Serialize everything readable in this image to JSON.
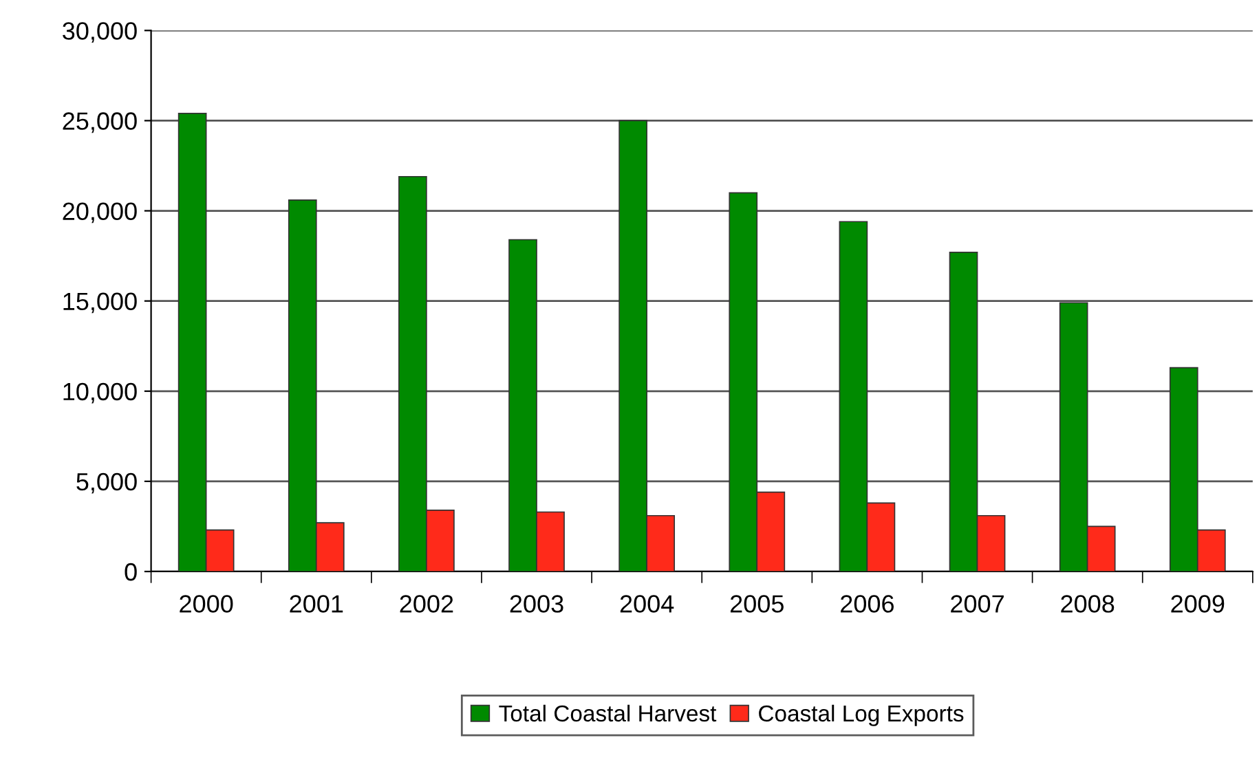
{
  "chart_data": {
    "type": "bar",
    "categories": [
      "2000",
      "2001",
      "2002",
      "2003",
      "2004",
      "2005",
      "2006",
      "2007",
      "2008",
      "2009"
    ],
    "series": [
      {
        "name": "Total Coastal Harvest",
        "color": "#008a00",
        "values": [
          25400,
          20600,
          21900,
          18400,
          25000,
          21000,
          19400,
          17700,
          14900,
          11300
        ]
      },
      {
        "name": "Coastal Log Exports",
        "color": "#ff2a1a",
        "values": [
          2300,
          2700,
          3400,
          3300,
          3100,
          4400,
          3800,
          3100,
          2500,
          2300
        ]
      }
    ],
    "ylim": [
      0,
      30000
    ],
    "yticks": [
      {
        "value": 0,
        "label": "0"
      },
      {
        "value": 5000,
        "label": "5,000"
      },
      {
        "value": 10000,
        "label": "10,000"
      },
      {
        "value": 15000,
        "label": "15,000"
      },
      {
        "value": 20000,
        "label": "20,000"
      },
      {
        "value": 25000,
        "label": "25,000"
      },
      {
        "value": 30000,
        "label": "30,000"
      }
    ],
    "grid": "y",
    "legend": "bottom"
  }
}
